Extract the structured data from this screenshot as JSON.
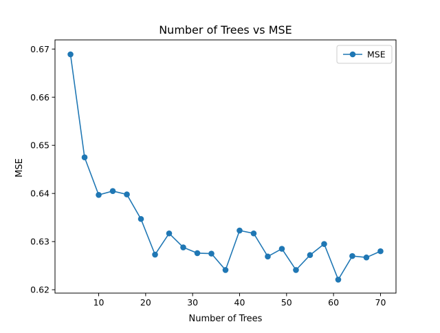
{
  "chart_data": {
    "type": "line",
    "title": "Number of Trees vs MSE",
    "xlabel": "Number of Trees",
    "ylabel": "MSE",
    "xlim": [
      0.7,
      73.3
    ],
    "ylim": [
      0.6193,
      0.6719
    ],
    "xticks": [
      10,
      20,
      30,
      40,
      50,
      60,
      70
    ],
    "yticks": [
      0.62,
      0.63,
      0.64,
      0.65,
      0.66,
      0.67
    ],
    "ytick_labels": [
      "0.62",
      "0.63",
      "0.64",
      "0.65",
      "0.66",
      "0.67"
    ],
    "grid": false,
    "legend": "upper right",
    "series": [
      {
        "name": "MSE",
        "color": "#1f77b4",
        "marker": "circle",
        "x": [
          4,
          7,
          10,
          13,
          16,
          19,
          22,
          25,
          28,
          31,
          34,
          37,
          40,
          43,
          46,
          49,
          52,
          55,
          58,
          61,
          64,
          67,
          70
        ],
        "y": [
          0.6689,
          0.6475,
          0.6397,
          0.6405,
          0.6398,
          0.6347,
          0.6273,
          0.6317,
          0.6288,
          0.6276,
          0.6275,
          0.6241,
          0.6323,
          0.6317,
          0.6269,
          0.6285,
          0.6241,
          0.6272,
          0.6295,
          0.6221,
          0.627,
          0.6267,
          0.628
        ]
      }
    ]
  }
}
